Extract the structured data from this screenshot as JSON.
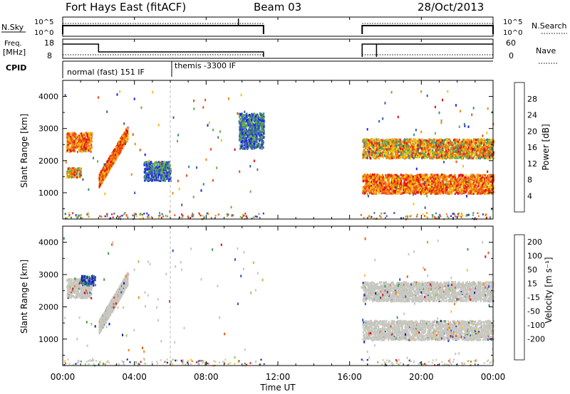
{
  "title": {
    "station": "Fort Hays East (fitACF)",
    "beam": "Beam 03",
    "date": "28/Oct/2013"
  },
  "panels": {
    "nsky": {
      "label": "N.Sky",
      "left_ticks": [
        "10^5",
        "10^0"
      ],
      "right_label": "N.Search",
      "right_ticks": [
        "10^5",
        "10^0"
      ]
    },
    "freq": {
      "label_lines": [
        "Freq.",
        "[MHz]"
      ],
      "left_ticks": [
        "18",
        "8"
      ],
      "right_label": "Nave",
      "right_ticks": [
        "60",
        "0"
      ]
    },
    "cpid": {
      "label": "CPID",
      "modes": [
        "normal (fast) 151 IF",
        "themis -3300 IF"
      ]
    }
  },
  "time_axis": {
    "label": "Time UT",
    "ticks": [
      "00:00",
      "04:00",
      "08:00",
      "12:00",
      "16:00",
      "20:00",
      "00:00"
    ]
  },
  "chart_data": [
    {
      "type": "heatmap",
      "title": "",
      "xlabel": "",
      "ylabel": "Slant Range [km]",
      "xlim": [
        0,
        24
      ],
      "ylim": [
        180,
        4500
      ],
      "yticks": [
        1000,
        2000,
        3000,
        4000
      ],
      "colorbar": {
        "label": "Power [dB]",
        "ticks": [
          "4",
          "8",
          "12",
          "16",
          "20",
          "24",
          "28"
        ],
        "colors": [
          "#1e1eff",
          "#3b5ba9",
          "#3d8a78",
          "#6ab04a",
          "#f2c40c",
          "#f08a12",
          "#f04e12",
          "#e01010"
        ]
      },
      "data_gaps_ut": [
        [
          11.2,
          16.6
        ]
      ],
      "echo_regions": [
        {
          "t": [
            0.2,
            1.6
          ],
          "range_km": [
            2300,
            2900
          ],
          "level": "16-28 dB"
        },
        {
          "t": [
            0.2,
            1.0
          ],
          "range_km": [
            1500,
            1800
          ],
          "level": "16-28 dB"
        },
        {
          "t": [
            2.0,
            3.6
          ],
          "range_km": [
            1400,
            2900
          ],
          "level": "16-24 dB"
        },
        {
          "t": [
            4.5,
            6.0
          ],
          "range_km": [
            1400,
            2000
          ],
          "level": "4-12 dB"
        },
        {
          "t": [
            9.8,
            11.2
          ],
          "range_km": [
            2400,
            3500
          ],
          "level": "4-16 dB"
        },
        {
          "t": [
            16.7,
            24.0
          ],
          "range_km": [
            2100,
            2700
          ],
          "level": "12-24 dB"
        },
        {
          "t": [
            16.7,
            24.0
          ],
          "range_km": [
            1000,
            1600
          ],
          "level": "20-28 dB"
        }
      ]
    },
    {
      "type": "heatmap",
      "title": "",
      "xlabel": "Time UT",
      "ylabel": "Slant Range [km]",
      "xlim": [
        0,
        24
      ],
      "ylim": [
        180,
        4500
      ],
      "yticks": [
        1000,
        2000,
        3000,
        4000
      ],
      "colorbar": {
        "label": "Velocity [m s⁻¹]",
        "ticks": [
          "200",
          "100",
          "50",
          "15",
          "-15",
          "-50",
          "-100",
          "-200"
        ],
        "colors": [
          "#1a1aa8",
          "#2a56c6",
          "#3f9c4e",
          "#8fd04a",
          "#c7c7c2",
          "#f6c54a",
          "#f28a18",
          "#f25414",
          "#e0100e"
        ]
      },
      "data_gaps_ut": [
        [
          11.2,
          16.6
        ]
      ],
      "echo_regions": [
        {
          "t": [
            0.2,
            1.6
          ],
          "range_km": [
            2300,
            2900
          ],
          "level": "ground scatter"
        },
        {
          "t": [
            1.0,
            1.8
          ],
          "range_km": [
            2700,
            3000
          ],
          "level": "100-200 m/s"
        },
        {
          "t": [
            2.0,
            3.6
          ],
          "range_km": [
            1400,
            2900
          ],
          "level": "ground scatter"
        },
        {
          "t": [
            16.7,
            24.0
          ],
          "range_km": [
            2200,
            2800
          ],
          "level": "ground scatter"
        },
        {
          "t": [
            16.7,
            24.0
          ],
          "range_km": [
            1000,
            1600
          ],
          "level": "ground scatter"
        }
      ]
    }
  ]
}
